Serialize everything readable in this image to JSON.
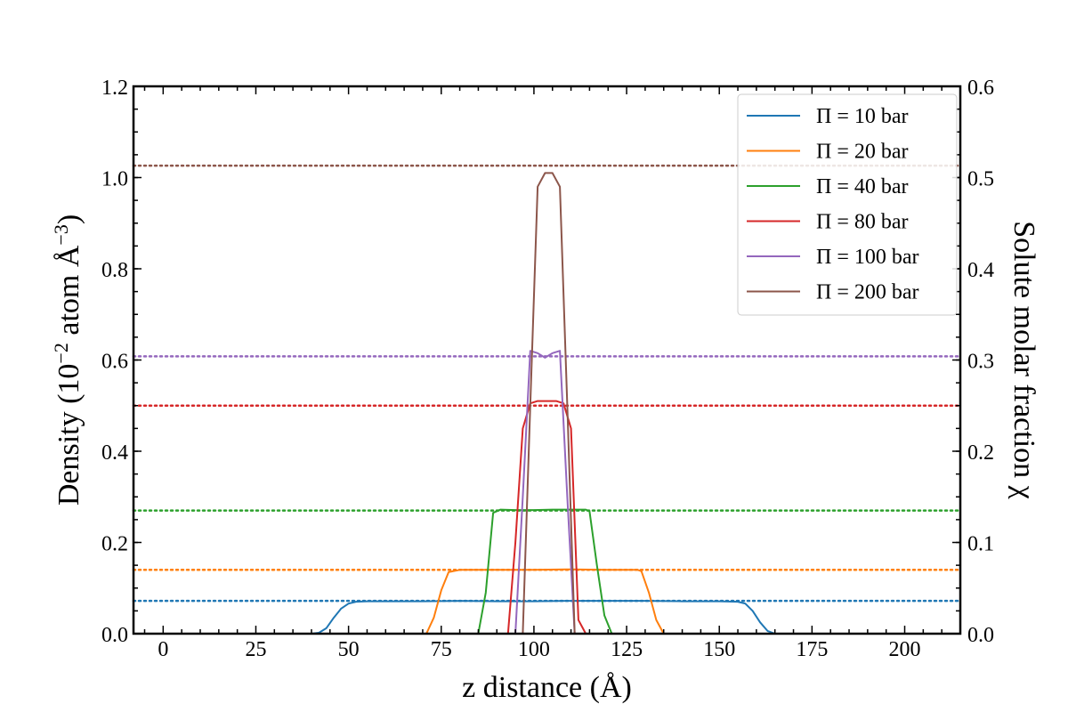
{
  "chart_data": {
    "type": "line",
    "xlabel": "z distance (Å)",
    "ylabel": "Density (10",
    "ylabel_exp1": "−2",
    "ylabel_mid": " atom Å",
    "ylabel_exp2": "−3",
    "ylabel_end": ")",
    "y2label": "Solute molar fraction χ",
    "xlim": [
      -8,
      215
    ],
    "ylim": [
      0,
      1.2
    ],
    "y2lim": [
      0,
      0.6
    ],
    "xticks": [
      0,
      25,
      50,
      75,
      100,
      125,
      150,
      175,
      200
    ],
    "xtick_labels": [
      "0",
      "25",
      "50",
      "75",
      "100",
      "125",
      "150",
      "175",
      "200"
    ],
    "yticks": [
      0,
      0.2,
      0.4,
      0.6,
      0.8,
      1.0,
      1.2
    ],
    "ytick_labels": [
      "0.0",
      "0.2",
      "0.4",
      "0.6",
      "0.8",
      "1.0",
      "1.2"
    ],
    "y2ticks": [
      0,
      0.1,
      0.2,
      0.3,
      0.4,
      0.5,
      0.6
    ],
    "y2tick_labels": [
      "0.0",
      "0.1",
      "0.2",
      "0.3",
      "0.4",
      "0.5",
      "0.6"
    ],
    "grid": false,
    "legend_position": "top-right",
    "series": [
      {
        "name": "Π = 10 bar",
        "color": "#1f77b4",
        "reference_fraction": 0.036,
        "points": [
          [
            40,
            0
          ],
          [
            42,
            0.002
          ],
          [
            44,
            0.012
          ],
          [
            46,
            0.035
          ],
          [
            48,
            0.055
          ],
          [
            50,
            0.066
          ],
          [
            52,
            0.07
          ],
          [
            55,
            0.071
          ],
          [
            60,
            0.071
          ],
          [
            70,
            0.071
          ],
          [
            80,
            0.072
          ],
          [
            90,
            0.071
          ],
          [
            100,
            0.071
          ],
          [
            110,
            0.072
          ],
          [
            120,
            0.072
          ],
          [
            130,
            0.072
          ],
          [
            140,
            0.071
          ],
          [
            150,
            0.071
          ],
          [
            155,
            0.07
          ],
          [
            157,
            0.066
          ],
          [
            159,
            0.05
          ],
          [
            161,
            0.025
          ],
          [
            163,
            0.006
          ],
          [
            165,
            0
          ]
        ]
      },
      {
        "name": "Π = 20 bar",
        "color": "#ff7f0e",
        "reference_fraction": 0.07,
        "points": [
          [
            71,
            0
          ],
          [
            73,
            0.035
          ],
          [
            75,
            0.095
          ],
          [
            77,
            0.135
          ],
          [
            80,
            0.14
          ],
          [
            90,
            0.14
          ],
          [
            100,
            0.14
          ],
          [
            110,
            0.141
          ],
          [
            120,
            0.14
          ],
          [
            128,
            0.14
          ],
          [
            129,
            0.137
          ],
          [
            131,
            0.09
          ],
          [
            133,
            0.03
          ],
          [
            135,
            0
          ]
        ]
      },
      {
        "name": "Π = 40 bar",
        "color": "#2ca02c",
        "reference_fraction": 0.135,
        "points": [
          [
            85,
            0
          ],
          [
            87,
            0.09
          ],
          [
            89,
            0.265
          ],
          [
            91,
            0.272
          ],
          [
            95,
            0.271
          ],
          [
            100,
            0.271
          ],
          [
            105,
            0.272
          ],
          [
            110,
            0.272
          ],
          [
            114,
            0.272
          ],
          [
            115,
            0.268
          ],
          [
            117,
            0.15
          ],
          [
            119,
            0.04
          ],
          [
            121,
            0
          ]
        ]
      },
      {
        "name": "Π = 80 bar",
        "color": "#d62728",
        "reference_fraction": 0.25,
        "points": [
          [
            93,
            0
          ],
          [
            95,
            0.2
          ],
          [
            97,
            0.45
          ],
          [
            99,
            0.505
          ],
          [
            101,
            0.51
          ],
          [
            104,
            0.51
          ],
          [
            106,
            0.51
          ],
          [
            108,
            0.505
          ],
          [
            110,
            0.45
          ],
          [
            112,
            0.03
          ],
          [
            114,
            0
          ]
        ]
      },
      {
        "name": "Π = 100 bar",
        "color": "#9467bd",
        "reference_fraction": 0.304,
        "points": [
          [
            95,
            0
          ],
          [
            97,
            0.3
          ],
          [
            99,
            0.62
          ],
          [
            101,
            0.615
          ],
          [
            103,
            0.605
          ],
          [
            105,
            0.615
          ],
          [
            107,
            0.62
          ],
          [
            109,
            0.3
          ],
          [
            111,
            0
          ],
          [
            113,
            0
          ]
        ]
      },
      {
        "name": "Π = 200 bar",
        "color": "#8c564b",
        "reference_fraction": 0.513,
        "points": [
          [
            97,
            0
          ],
          [
            99,
            0.5
          ],
          [
            101,
            0.98
          ],
          [
            103,
            1.01
          ],
          [
            105,
            1.01
          ],
          [
            107,
            0.98
          ],
          [
            109,
            0.5
          ],
          [
            111,
            0
          ]
        ]
      }
    ]
  }
}
